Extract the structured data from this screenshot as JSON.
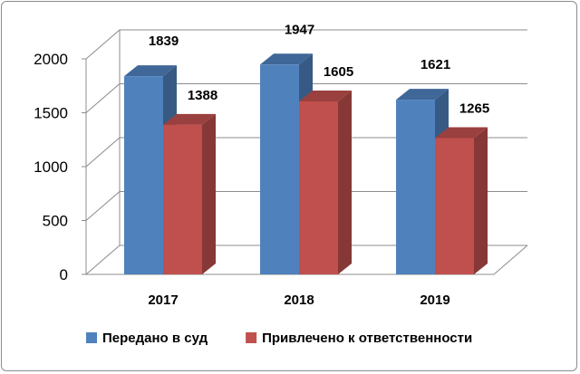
{
  "chart_data": {
    "type": "bar",
    "style": "3d-clustered-column",
    "categories": [
      "2017",
      "2018",
      "2019"
    ],
    "series": [
      {
        "name": "Передано в суд",
        "values": [
          1839,
          1947,
          1621
        ],
        "color": "#4F81BD"
      },
      {
        "name": "Привлечено к ответственности",
        "values": [
          1388,
          1605,
          1265
        ],
        "color": "#C0504D"
      }
    ],
    "ylim": [
      0,
      2000
    ],
    "yticks": [
      0,
      500,
      1000,
      1500,
      2000
    ],
    "grid": true,
    "legend_position": "bottom",
    "data_labels": true
  }
}
